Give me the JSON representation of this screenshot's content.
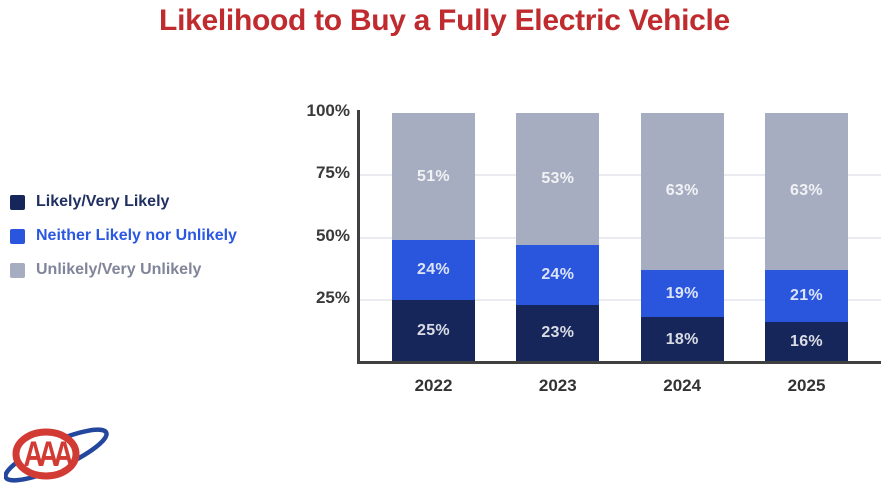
{
  "title": {
    "text": "Likelihood to Buy a Fully Electric Vehicle",
    "color": "#bf2b2e"
  },
  "legend": {
    "items": [
      {
        "label": "Likely/Very Likely",
        "swatch_color": "#16265a",
        "text_color": "#203061"
      },
      {
        "label": "Neither Likely nor Unlikely",
        "swatch_color": "#2a56dd",
        "text_color": "#2b58e0"
      },
      {
        "label": "Unlikely/Very Unlikely",
        "swatch_color": "#a6adc0",
        "text_color": "#80859a"
      }
    ]
  },
  "chart_data": {
    "type": "bar",
    "stacked": true,
    "title": "Likelihood to Buy a Fully Electric Vehicle",
    "categories": [
      "2022",
      "2023",
      "2024",
      "2025"
    ],
    "series": [
      {
        "name": "Likely/Very Likely",
        "color": "#16265a",
        "values": [
          25,
          23,
          18,
          16
        ]
      },
      {
        "name": "Neither Likely nor Unlikely",
        "color": "#2a56dd",
        "values": [
          24,
          24,
          19,
          21
        ]
      },
      {
        "name": "Unlikely/Very Unlikely",
        "color": "#a6adc0",
        "values": [
          51,
          53,
          63,
          63
        ]
      }
    ],
    "xlabel": "",
    "ylabel": "",
    "ylim": [
      0,
      100
    ],
    "y_ticks": [
      "25%",
      "50%",
      "75%",
      "100%"
    ],
    "grid": true,
    "legend_position": "left",
    "data_label_format": "{value}%"
  },
  "logo": {
    "monogram": "AAA",
    "oval_color": "#d23a34",
    "swoosh_color": "#24479e"
  }
}
